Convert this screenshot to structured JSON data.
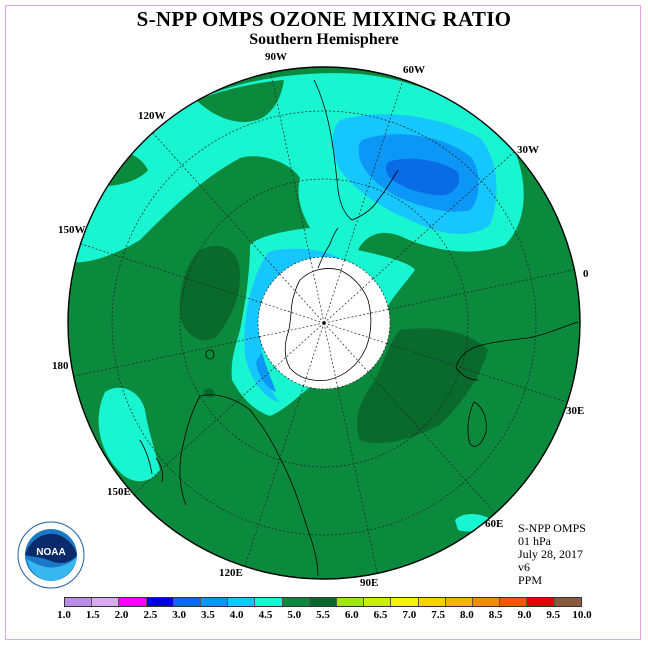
{
  "header": {
    "title": "S-NPP OMPS OZONE MIXING RATIO",
    "subtitle": "Southern Hemisphere"
  },
  "map": {
    "projection": "south polar stereographic",
    "longitude_labels": [
      "90W",
      "60W",
      "30W",
      "0",
      "30E",
      "60E",
      "90E",
      "120E",
      "150E",
      "180",
      "150W",
      "120W"
    ],
    "colors": {
      "background_field": "#0b8a3d",
      "high_field": "#0a6a2d",
      "contour_4_5_to_5_0": "#19f5d0",
      "contour_4_0_to_4_5": "#16c7ff",
      "contour_3_5_to_4_0": "#0c96f5",
      "contour_3_0_to_3_5": "#0a6be6",
      "polar_night": "#ffffff",
      "coastline": "#000000",
      "grid": "#222222"
    }
  },
  "product": {
    "instrument": "S-NPP OMPS",
    "level": "01 hPa",
    "date": "July 28, 2017",
    "version": "v6",
    "units": "PPM"
  },
  "logo": {
    "text": "NOAA"
  },
  "legend": {
    "ticks": [
      "1.0",
      "1.5",
      "2.0",
      "2.5",
      "3.0",
      "3.5",
      "4.0",
      "4.5",
      "5.0",
      "5.5",
      "6.0",
      "6.5",
      "7.0",
      "7.5",
      "8.0",
      "8.5",
      "9.0",
      "9.5",
      "10.0"
    ],
    "colors": [
      "#b98ce6",
      "#d9aaf2",
      "#ff00ff",
      "#0000e6",
      "#0a6be6",
      "#0c96f5",
      "#16c7ff",
      "#19f5d0",
      "#0b8a3d",
      "#0a6a2d",
      "#9ee61a",
      "#c8f000",
      "#f5f500",
      "#f5d200",
      "#f5b400",
      "#f08c00",
      "#f05a00",
      "#e60000",
      "#8b5a3c"
    ]
  }
}
